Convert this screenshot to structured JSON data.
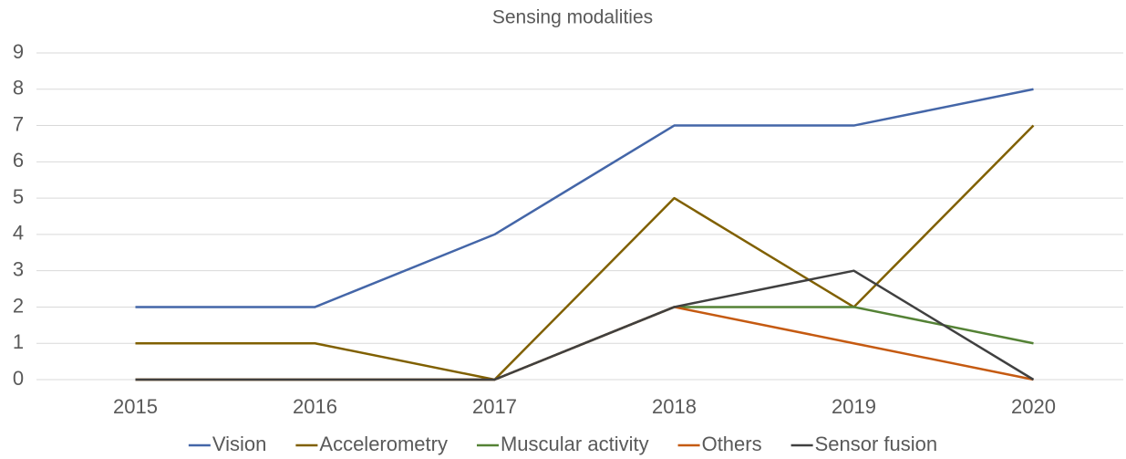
{
  "chart_data": {
    "type": "line",
    "title": "Sensing modalities",
    "categories": [
      "2015",
      "2016",
      "2017",
      "2018",
      "2019",
      "2020"
    ],
    "series": [
      {
        "name": "Vision",
        "color": "#4466a8",
        "values": [
          2,
          2,
          4,
          7,
          7,
          8
        ]
      },
      {
        "name": "Accelerometry",
        "color": "#806000",
        "values": [
          1,
          1,
          0,
          5,
          2,
          7
        ]
      },
      {
        "name": "Muscular activity",
        "color": "#548235",
        "values": [
          0,
          0,
          0,
          2,
          2,
          1
        ]
      },
      {
        "name": "Others",
        "color": "#c55a11",
        "values": [
          0,
          0,
          0,
          2,
          1,
          0
        ]
      },
      {
        "name": "Sensor fusion",
        "color": "#404040",
        "values": [
          0,
          0,
          0,
          2,
          3,
          0
        ]
      }
    ],
    "ylim": [
      0,
      9
    ],
    "yticks": [
      0,
      1,
      2,
      3,
      4,
      5,
      6,
      7,
      8,
      9
    ],
    "grid": true,
    "legend": "bottom"
  }
}
